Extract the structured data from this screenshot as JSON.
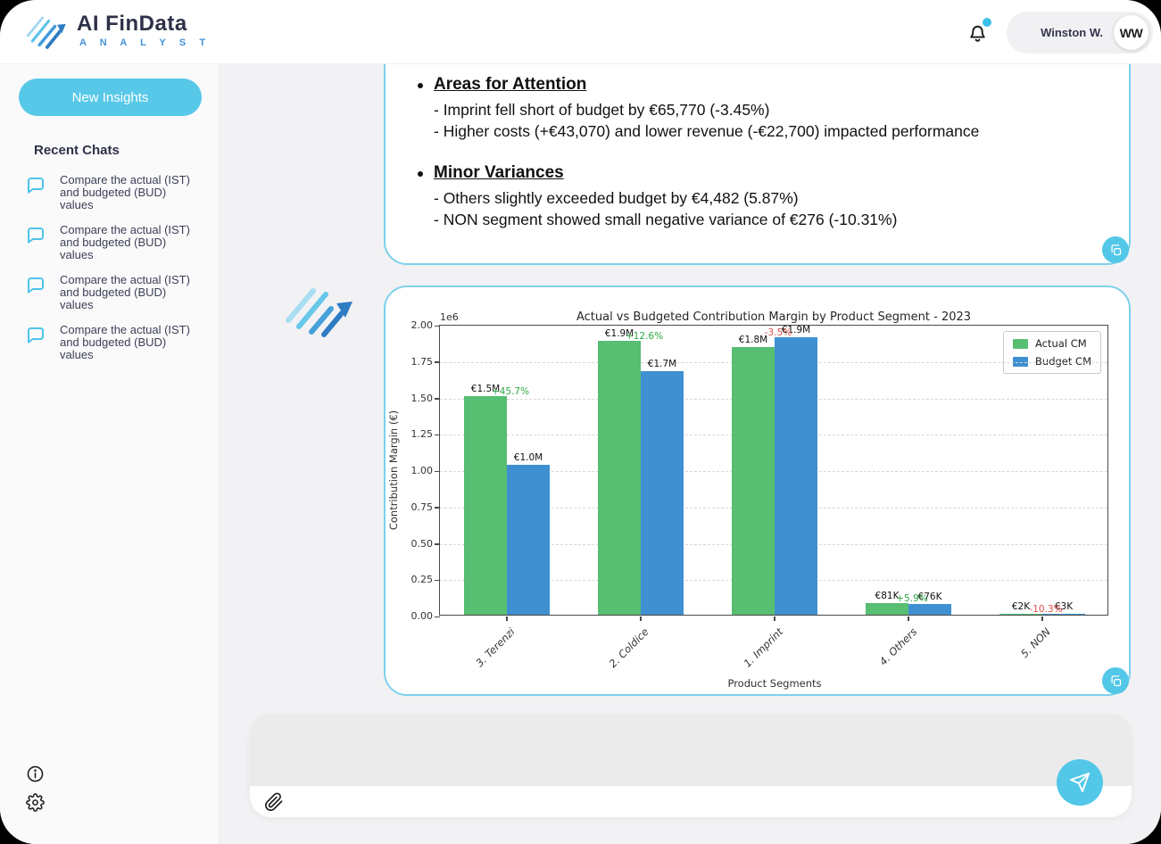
{
  "app": {
    "accent": "#53C7E8",
    "accent_border": "#7DD1EC"
  },
  "header": {
    "brand": {
      "title": "AI FinData",
      "subtitle": "A N A L Y S T"
    },
    "notifications": {
      "has_unread": true,
      "badge_color": "#3BC1E8"
    },
    "user": {
      "name": "Winston W.",
      "initials": "WW"
    }
  },
  "sidebar": {
    "new_insights_label": "New Insights",
    "recent_chats_title": "Recent Chats",
    "chats": [
      {
        "label": "Compare the actual (IST) and budgeted (BUD) values"
      },
      {
        "label": "Compare the actual (IST) and budgeted (BUD) values"
      },
      {
        "label": "Compare the actual (IST) and budgeted (BUD) values"
      },
      {
        "label": "Compare the actual (IST) and budgeted (BUD) values"
      }
    ]
  },
  "message": {
    "sections": [
      {
        "heading": "Areas for Attention",
        "lines": [
          "- Imprint fell short of budget by €65,770 (-3.45%)",
          "- Higher costs (+€43,070) and lower revenue (-€22,700) impacted performance"
        ]
      },
      {
        "heading": "Minor Variances",
        "lines": [
          "- Others slightly exceeded budget by €4,482 (5.87%)",
          "- NON segment showed small negative variance of €276 (-10.31%)"
        ]
      }
    ]
  },
  "chart_data": {
    "type": "bar",
    "title": "Actual vs Budgeted Contribution Margin by Product Segment - 2023",
    "xlabel": "Product Segments",
    "ylabel": "Contribution Margin (€)",
    "y_scale_note": "1e6",
    "ylim": [
      0,
      2000000
    ],
    "yticks": [
      0,
      250000,
      500000,
      750000,
      1000000,
      1250000,
      1500000,
      1750000,
      2000000
    ],
    "ytick_labels": [
      "0.00",
      "0.25",
      "0.50",
      "0.75",
      "1.00",
      "1.25",
      "1.50",
      "1.75",
      "2.00"
    ],
    "grid": "horizontal-dashed",
    "legend_position": "upper-right",
    "categories": [
      "3. Terenzi",
      "2. Coldice",
      "1. Imprint",
      "4. Others",
      "5. NON"
    ],
    "series": [
      {
        "name": "Actual CM",
        "color": "#57BE72",
        "values": [
          1505000,
          1883000,
          1840000,
          81000,
          2400
        ],
        "labels": [
          "€1.5M",
          "€1.9M",
          "€1.8M",
          "€81K",
          "€2K"
        ]
      },
      {
        "name": "Budget CM",
        "color": "#3F90D1",
        "values": [
          1033000,
          1672000,
          1906000,
          76500,
          2700
        ],
        "labels": [
          "€1.0M",
          "€1.7M",
          "€1.9M",
          "€76K",
          "€3K"
        ]
      }
    ],
    "variance_labels": [
      {
        "text": "+45.7%",
        "positive": true
      },
      {
        "text": "+12.6%",
        "positive": true
      },
      {
        "text": "-3.5%",
        "positive": false
      },
      {
        "text": "+5.9%",
        "positive": true
      },
      {
        "text": "-10.3%",
        "positive": false
      }
    ],
    "variance_colors": {
      "positive": "#2FA844",
      "negative": "#E0504A"
    }
  },
  "composer": {
    "value": "",
    "placeholder": ""
  }
}
